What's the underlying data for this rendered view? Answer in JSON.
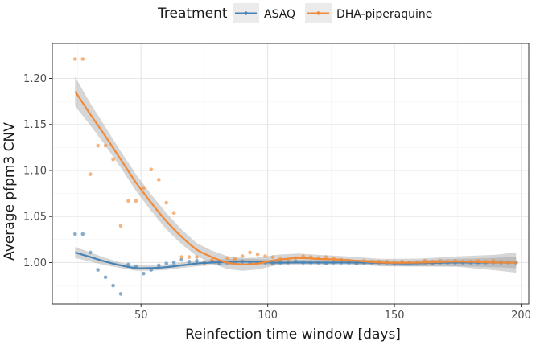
{
  "chart_data": {
    "type": "scatter",
    "title": "",
    "xlabel": "Reinfection time window [days]",
    "ylabel": "Average pfpm3 CNV",
    "xlim": [
      15,
      203
    ],
    "ylim": [
      0.955,
      1.238
    ],
    "x_ticks": [
      {
        "value": 50,
        "label": "50"
      },
      {
        "value": 100,
        "label": "100"
      },
      {
        "value": 150,
        "label": "150"
      },
      {
        "value": 200,
        "label": "200"
      }
    ],
    "y_ticks": [
      {
        "value": 1.0,
        "label": "1.00"
      },
      {
        "value": 1.05,
        "label": "1.05"
      },
      {
        "value": 1.1,
        "label": "1.10"
      },
      {
        "value": 1.15,
        "label": "1.15"
      },
      {
        "value": 1.2,
        "label": "1.20"
      }
    ],
    "legend": {
      "title": "Treatment",
      "position": "top",
      "entries": [
        "ASAQ",
        "DHA-piperaquine"
      ]
    },
    "series": [
      {
        "name": "ASAQ",
        "color": "#4682b4",
        "points": [
          [
            24,
            1.031
          ],
          [
            27,
            1.031
          ],
          [
            30,
            1.011
          ],
          [
            33,
            0.992
          ],
          [
            36,
            0.984
          ],
          [
            39,
            0.975
          ],
          [
            42,
            0.966
          ],
          [
            45,
            0.998
          ],
          [
            48,
            0.996
          ],
          [
            51,
            0.988
          ],
          [
            54,
            0.992
          ],
          [
            57,
            0.997
          ],
          [
            60,
            0.999
          ],
          [
            63,
            1.0
          ],
          [
            66,
            1.003
          ],
          [
            69,
            1.001
          ],
          [
            72,
            1.002
          ],
          [
            75,
            1.0
          ],
          [
            78,
            1.001
          ],
          [
            81,
            0.999
          ],
          [
            84,
            1.0
          ],
          [
            87,
            1.0
          ],
          [
            90,
            1.001
          ],
          [
            93,
            0.999
          ],
          [
            96,
            1.0
          ],
          [
            99,
            1.0
          ],
          [
            102,
            0.999
          ],
          [
            105,
            1.0
          ],
          [
            108,
            1.0
          ],
          [
            111,
            1.001
          ],
          [
            114,
            1.0
          ],
          [
            117,
            1.0
          ],
          [
            120,
            1.0
          ],
          [
            123,
            0.999
          ],
          [
            126,
            1.0
          ],
          [
            129,
            1.0
          ],
          [
            132,
            1.0
          ],
          [
            135,
            0.999
          ],
          [
            138,
            1.0
          ],
          [
            141,
            1.0
          ],
          [
            144,
            1.0
          ],
          [
            147,
            1.0
          ],
          [
            150,
            0.999
          ],
          [
            153,
            1.0
          ],
          [
            156,
            1.0
          ],
          [
            159,
            1.0
          ],
          [
            162,
            1.0
          ],
          [
            165,
            0.999
          ],
          [
            168,
            1.0
          ],
          [
            171,
            1.0
          ],
          [
            174,
            1.0
          ],
          [
            177,
            1.0
          ],
          [
            180,
            1.0
          ],
          [
            183,
            1.0
          ],
          [
            186,
            1.0
          ],
          [
            189,
            1.0
          ],
          [
            192,
            1.0
          ],
          [
            195,
            1.0
          ],
          [
            198,
            1.0
          ]
        ],
        "smooth": [
          [
            24,
            1.011
          ],
          [
            30,
            1.006
          ],
          [
            36,
            1.001
          ],
          [
            42,
            0.997
          ],
          [
            48,
            0.994
          ],
          [
            54,
            0.994
          ],
          [
            60,
            0.995
          ],
          [
            66,
            0.997
          ],
          [
            72,
            0.999
          ],
          [
            78,
            1.0
          ],
          [
            86,
            1.001
          ],
          [
            94,
            1.001
          ],
          [
            102,
            1.0
          ],
          [
            112,
            1.0
          ],
          [
            125,
            1.0
          ],
          [
            140,
            1.0
          ],
          [
            155,
            0.999
          ],
          [
            170,
            1.0
          ],
          [
            185,
            1.0
          ],
          [
            198,
            1.0
          ]
        ],
        "band": [
          [
            24,
            0.006
          ],
          [
            30,
            0.005
          ],
          [
            36,
            0.004
          ],
          [
            42,
            0.003
          ],
          [
            50,
            0.003
          ],
          [
            60,
            0.003
          ],
          [
            70,
            0.003
          ],
          [
            80,
            0.003
          ],
          [
            90,
            0.003
          ],
          [
            100,
            0.003
          ],
          [
            115,
            0.003
          ],
          [
            130,
            0.003
          ],
          [
            145,
            0.003
          ],
          [
            160,
            0.003
          ],
          [
            175,
            0.004
          ],
          [
            190,
            0.005
          ],
          [
            198,
            0.006
          ]
        ]
      },
      {
        "name": "DHA-piperaquine",
        "color": "#f08a38",
        "points": [
          [
            24,
            1.221
          ],
          [
            27,
            1.221
          ],
          [
            30,
            1.096
          ],
          [
            33,
            1.127
          ],
          [
            36,
            1.127
          ],
          [
            39,
            1.112
          ],
          [
            42,
            1.04
          ],
          [
            45,
            1.067
          ],
          [
            48,
            1.067
          ],
          [
            51,
            1.081
          ],
          [
            54,
            1.101
          ],
          [
            57,
            1.09
          ],
          [
            60,
            1.065
          ],
          [
            63,
            1.054
          ],
          [
            66,
            1.006
          ],
          [
            69,
            1.006
          ],
          [
            72,
            1.006
          ],
          [
            75,
            0.999
          ],
          [
            78,
            1.003
          ],
          [
            81,
            1.001
          ],
          [
            84,
            1.005
          ],
          [
            87,
            1.004
          ],
          [
            90,
            1.007
          ],
          [
            93,
            1.011
          ],
          [
            96,
            1.009
          ],
          [
            99,
            1.007
          ],
          [
            102,
            1.006
          ],
          [
            105,
            1.004
          ],
          [
            108,
            1.003
          ],
          [
            111,
            1.005
          ],
          [
            114,
            1.007
          ],
          [
            117,
            1.006
          ],
          [
            120,
            1.005
          ],
          [
            123,
            1.006
          ],
          [
            126,
            1.004
          ],
          [
            129,
            1.003
          ],
          [
            132,
            1.002
          ],
          [
            135,
            1.001
          ],
          [
            138,
            1.002
          ],
          [
            141,
            1.001
          ],
          [
            144,
            1.001
          ],
          [
            147,
            1.001
          ],
          [
            150,
            1.0
          ],
          [
            153,
            1.001
          ],
          [
            156,
            1.0
          ],
          [
            159,
            1.0
          ],
          [
            162,
            1.002
          ],
          [
            165,
            1.001
          ],
          [
            168,
            1.002
          ],
          [
            171,
            1.001
          ],
          [
            174,
            1.002
          ],
          [
            177,
            1.001
          ],
          [
            180,
            1.001
          ],
          [
            183,
            1.002
          ],
          [
            186,
            1.001
          ],
          [
            189,
            1.002
          ],
          [
            192,
            1.001
          ],
          [
            195,
            1.0
          ],
          [
            198,
            1.0
          ]
        ],
        "smooth": [
          [
            24,
            1.186
          ],
          [
            30,
            1.161
          ],
          [
            36,
            1.137
          ],
          [
            42,
            1.112
          ],
          [
            48,
            1.087
          ],
          [
            54,
            1.065
          ],
          [
            60,
            1.045
          ],
          [
            66,
            1.028
          ],
          [
            72,
            1.014
          ],
          [
            78,
            1.006
          ],
          [
            84,
            1.0
          ],
          [
            90,
            0.998
          ],
          [
            96,
            0.999
          ],
          [
            104,
            1.003
          ],
          [
            112,
            1.005
          ],
          [
            120,
            1.004
          ],
          [
            130,
            1.003
          ],
          [
            145,
            1.0
          ],
          [
            160,
            1.0
          ],
          [
            175,
            1.001
          ],
          [
            190,
            1.0
          ],
          [
            198,
            1.0
          ]
        ],
        "band": [
          [
            24,
            0.016
          ],
          [
            30,
            0.012
          ],
          [
            36,
            0.01
          ],
          [
            42,
            0.009
          ],
          [
            48,
            0.009
          ],
          [
            54,
            0.009
          ],
          [
            60,
            0.009
          ],
          [
            66,
            0.008
          ],
          [
            72,
            0.007
          ],
          [
            78,
            0.007
          ],
          [
            84,
            0.007
          ],
          [
            90,
            0.007
          ],
          [
            100,
            0.006
          ],
          [
            110,
            0.005
          ],
          [
            125,
            0.004
          ],
          [
            140,
            0.004
          ],
          [
            155,
            0.004
          ],
          [
            170,
            0.005
          ],
          [
            185,
            0.007
          ],
          [
            198,
            0.011
          ]
        ]
      }
    ]
  }
}
